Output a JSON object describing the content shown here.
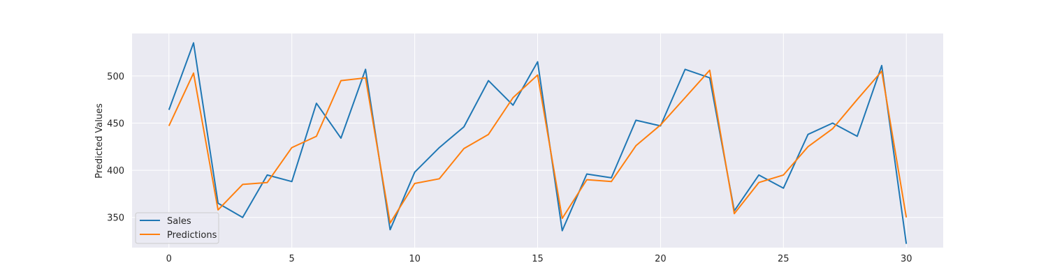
{
  "chart_data": {
    "type": "line",
    "title": "",
    "xlabel": "",
    "ylabel": "Predicted Values",
    "xlim": [
      -1.5,
      31.5
    ],
    "ylim": [
      318,
      545
    ],
    "xticks": [
      0,
      5,
      10,
      15,
      20,
      25,
      30
    ],
    "yticks": [
      350,
      400,
      450,
      500
    ],
    "grid": true,
    "legend_position": "lower-left",
    "x": [
      0,
      1,
      2,
      3,
      4,
      5,
      6,
      7,
      8,
      9,
      10,
      11,
      12,
      13,
      14,
      15,
      16,
      17,
      18,
      19,
      20,
      21,
      22,
      23,
      24,
      25,
      26,
      27,
      28,
      29,
      30
    ],
    "series": [
      {
        "name": "Sales",
        "color": "#1f77b4",
        "values": [
          464,
          535,
          365,
          350,
          395,
          388,
          471,
          434,
          507,
          337,
          398,
          424,
          446,
          495,
          469,
          515,
          336,
          396,
          392,
          453,
          447,
          507,
          498,
          357,
          395,
          381,
          438,
          450,
          436,
          511,
          322
        ]
      },
      {
        "name": "Predictions",
        "color": "#ff7f0e",
        "values": [
          447,
          503,
          358,
          385,
          387,
          424,
          436,
          495,
          498,
          344,
          386,
          391,
          423,
          438,
          477,
          501,
          349,
          390,
          388,
          426,
          448,
          477,
          506,
          354,
          387,
          395,
          425,
          444,
          475,
          505,
          350
        ]
      }
    ],
    "colors": {
      "plot_background": "#eaeaf2",
      "grid": "#ffffff",
      "text": "#262626"
    }
  }
}
